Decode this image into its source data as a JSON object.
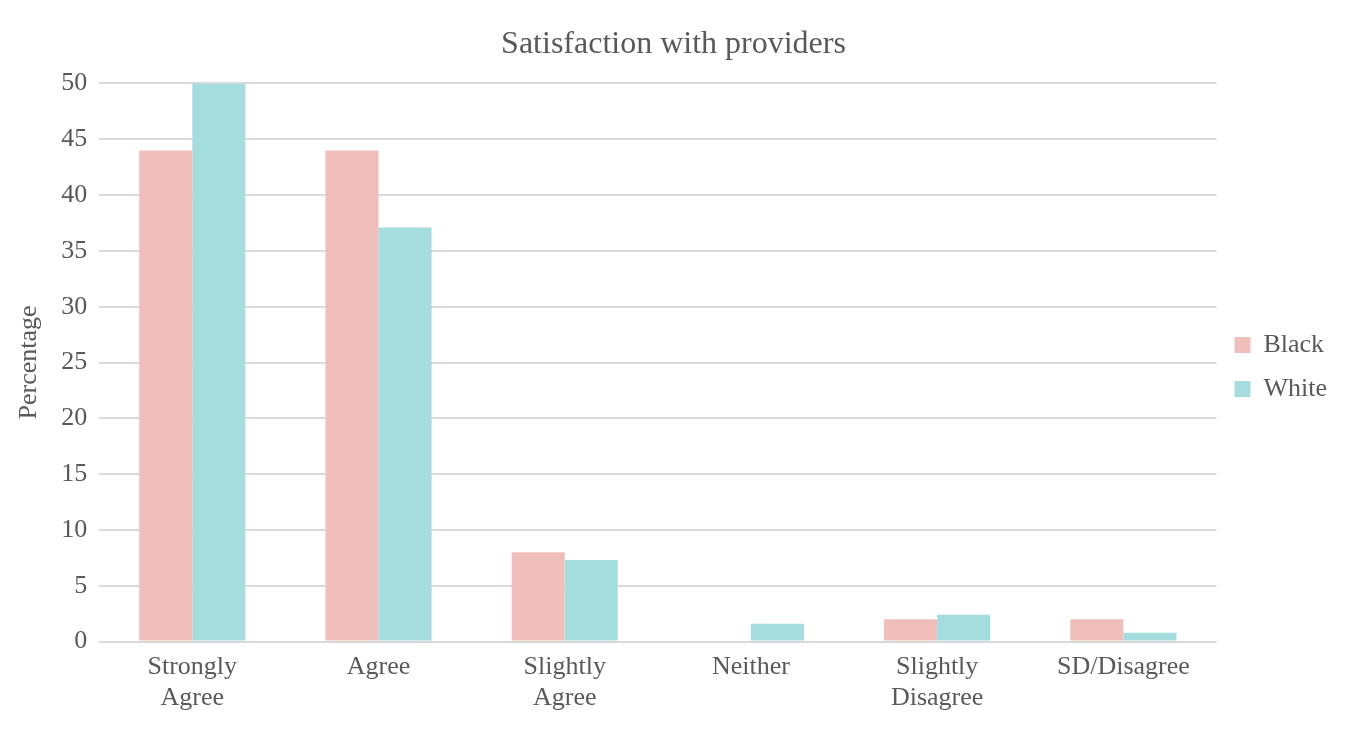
{
  "chart_data": {
    "type": "bar",
    "title": "Satisfaction with providers",
    "ylabel": "Percentage",
    "categories": [
      "Strongly Agree",
      "Agree",
      "Slightly Agree",
      "Neither",
      "Slightly Disagree",
      "SD/Disagree"
    ],
    "series": [
      {
        "name": "Black",
        "color": "#f0bfbb",
        "values": [
          44,
          44,
          8,
          0,
          2,
          2
        ]
      },
      {
        "name": "White",
        "color": "#a5dcdd",
        "values": [
          50,
          37.1,
          7.3,
          1.6,
          2.4,
          0.8
        ]
      }
    ],
    "ylim": [
      0,
      50
    ],
    "yticks": [
      0,
      5,
      10,
      15,
      20,
      25,
      30,
      35,
      40,
      45,
      50
    ],
    "grid": "y",
    "legend": "right"
  }
}
